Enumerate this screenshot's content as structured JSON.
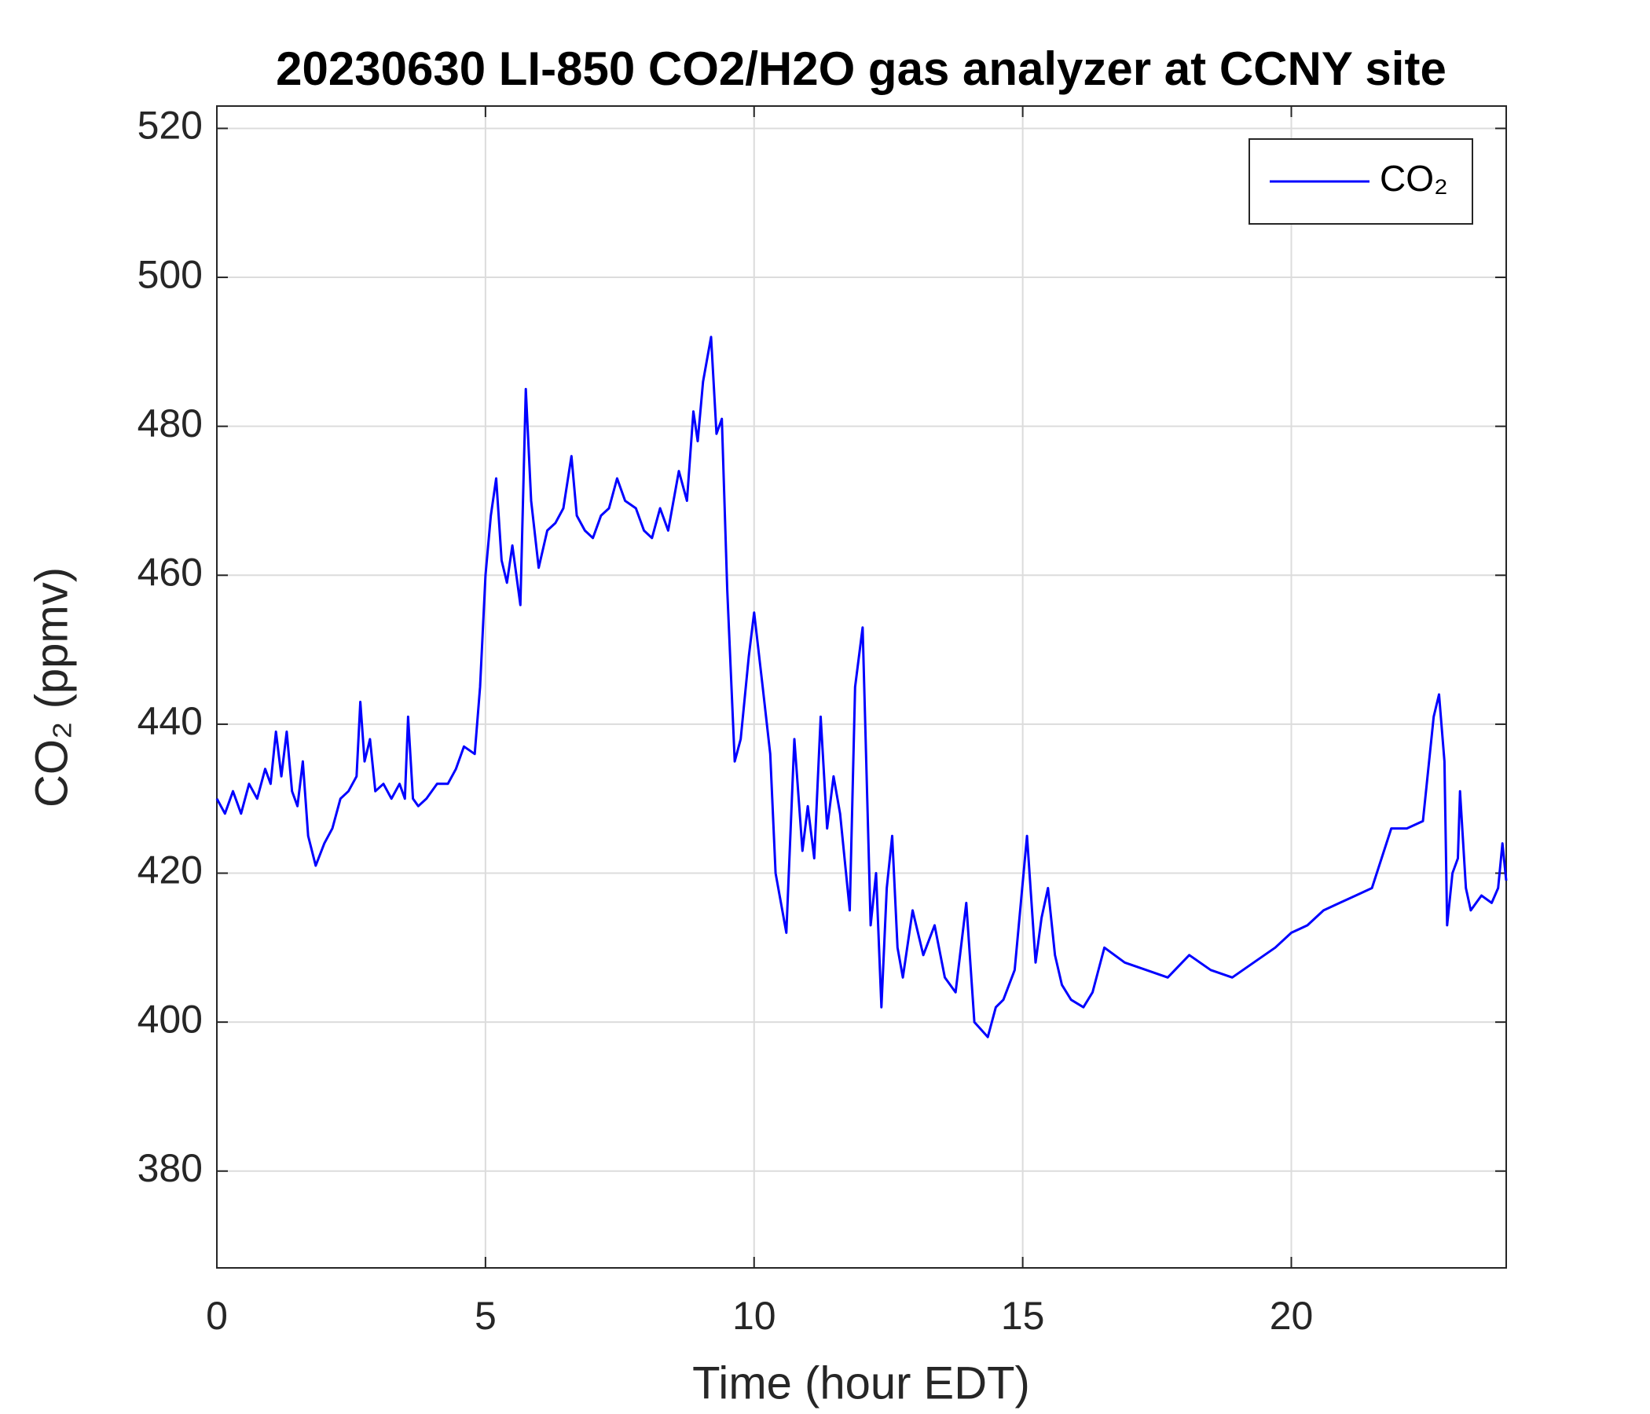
{
  "chart_data": {
    "type": "line",
    "title": "20230630 LI-850 CO2/H2O gas analyzer at CCNY site",
    "xlabel": "Time (hour EDT)",
    "ylabel": "CO₂ (ppmv)",
    "xlim": [
      0,
      24
    ],
    "xticks": [
      0,
      5,
      10,
      15,
      20
    ],
    "ylim": [
      367,
      523
    ],
    "yticks": [
      380,
      400,
      420,
      440,
      460,
      480,
      500,
      520
    ],
    "grid": true,
    "legend": "upper right",
    "x": [
      0,
      0.15,
      0.3,
      0.45,
      0.6,
      0.75,
      0.9,
      1.0,
      1.1,
      1.2,
      1.3,
      1.4,
      1.5,
      1.6,
      1.7,
      1.84,
      2.0,
      2.15,
      2.3,
      2.45,
      2.6,
      2.67,
      2.75,
      2.85,
      2.95,
      3.1,
      3.25,
      3.4,
      3.5,
      3.56,
      3.65,
      3.75,
      3.9,
      4.1,
      4.3,
      4.45,
      4.6,
      4.8,
      4.9,
      5.0,
      5.1,
      5.2,
      5.3,
      5.4,
      5.5,
      5.65,
      5.75,
      5.85,
      5.99,
      6.15,
      6.3,
      6.45,
      6.6,
      6.7,
      6.85,
      7.0,
      7.15,
      7.3,
      7.45,
      7.6,
      7.8,
      7.95,
      8.1,
      8.25,
      8.4,
      8.6,
      8.75,
      8.87,
      8.95,
      9.05,
      9.2,
      9.3,
      9.4,
      9.5,
      9.64,
      9.75,
      9.9,
      10.0,
      10.16,
      10.3,
      10.4,
      10.6,
      10.75,
      10.9,
      11.0,
      11.12,
      11.24,
      11.36,
      11.48,
      11.6,
      11.78,
      11.88,
      12.02,
      12.17,
      12.27,
      12.37,
      12.47,
      12.57,
      12.67,
      12.77,
      12.95,
      13.15,
      13.36,
      13.55,
      13.75,
      13.95,
      14.1,
      14.35,
      14.5,
      14.64,
      14.85,
      15.08,
      15.24,
      15.35,
      15.47,
      15.6,
      15.73,
      15.9,
      16.13,
      16.3,
      16.52,
      16.9,
      17.3,
      17.7,
      18.1,
      18.5,
      18.9,
      19.3,
      19.7,
      20.0,
      20.3,
      20.6,
      20.9,
      21.2,
      21.5,
      21.86,
      22.15,
      22.45,
      22.65,
      22.75,
      22.85,
      22.9,
      23.0,
      23.1,
      23.14,
      23.25,
      23.34,
      23.44,
      23.54,
      23.73,
      23.85,
      23.93,
      24.0
    ],
    "series": [
      {
        "name": "CO₂",
        "color": "#0000ff",
        "values": [
          430,
          428,
          431,
          428,
          432,
          430,
          434,
          432,
          439,
          433,
          439,
          431,
          429,
          435,
          425,
          421,
          424,
          426,
          430,
          431,
          433,
          443,
          435,
          438,
          431,
          432,
          430,
          432,
          430,
          441,
          430,
          429,
          430,
          432,
          432,
          434,
          437,
          436,
          445,
          460,
          468,
          473,
          462,
          459,
          464,
          456,
          485,
          470,
          461,
          466,
          467,
          469,
          476,
          468,
          466,
          465,
          468,
          469,
          473,
          470,
          469,
          466,
          465,
          469,
          466,
          474,
          470,
          482,
          478,
          486,
          492,
          479,
          481,
          458,
          435,
          438,
          449,
          455,
          445,
          436,
          420,
          412,
          438,
          423,
          429,
          422,
          441,
          426,
          433,
          428,
          415,
          445,
          453,
          413,
          420,
          402,
          418,
          425,
          410,
          406,
          415,
          409,
          413,
          406,
          404,
          416,
          400,
          398,
          402,
          403,
          407,
          425,
          408,
          414,
          418,
          409,
          405,
          403,
          402,
          404,
          410,
          408,
          407,
          406,
          409,
          407,
          406,
          408,
          410,
          412,
          413,
          415,
          416,
          417,
          418,
          426,
          426,
          427,
          441,
          444,
          435,
          413,
          420,
          422,
          431,
          418,
          415,
          416,
          417,
          416,
          418,
          424,
          419
        ]
      }
    ]
  }
}
